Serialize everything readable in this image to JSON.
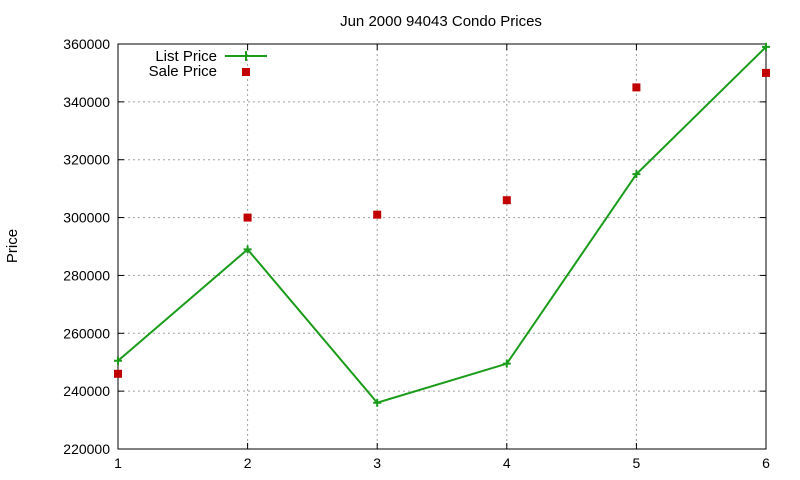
{
  "chart_data": {
    "type": "line",
    "title": "Jun 2000 94043 Condo Prices",
    "xlabel": "",
    "ylabel": "Price",
    "xlim": [
      1,
      6
    ],
    "ylim": [
      220000,
      360000
    ],
    "x_ticks": [
      "1",
      "2",
      "3",
      "4",
      "5",
      "6"
    ],
    "y_ticks": [
      "220000",
      "240000",
      "260000",
      "280000",
      "300000",
      "320000",
      "340000",
      "360000"
    ],
    "grid": true,
    "legend_position": "top-left",
    "series": [
      {
        "name": "List Price",
        "style": "line-with-plus-markers",
        "color": "#1a9c1a",
        "x": [
          1,
          2,
          3,
          4,
          5,
          6
        ],
        "y": [
          250500,
          289000,
          236000,
          249500,
          315000,
          359000
        ]
      },
      {
        "name": "Sale Price",
        "style": "square-markers",
        "color": "#c00000",
        "x": [
          1,
          2,
          3,
          4,
          5,
          6
        ],
        "y": [
          246000,
          300000,
          301000,
          306000,
          345000,
          350000
        ]
      }
    ]
  }
}
